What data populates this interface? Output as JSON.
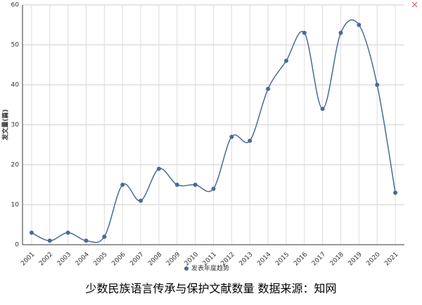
{
  "chart_data": {
    "type": "line",
    "y_label": "发文量(篇)",
    "categories": [
      "2001",
      "2002",
      "2003",
      "2004",
      "2005",
      "2006",
      "2007",
      "2008",
      "2009",
      "2010",
      "2011",
      "2012",
      "2013",
      "2014",
      "2015",
      "2016",
      "2017",
      "2018",
      "2019",
      "2020",
      "2021"
    ],
    "series": [
      {
        "name": "发表年度趋势",
        "color": "#4a6a96",
        "values": [
          3,
          1,
          3,
          1,
          2,
          15,
          11,
          19,
          15,
          15,
          14,
          27,
          26,
          39,
          46,
          53,
          34,
          53,
          55,
          40,
          13
        ]
      }
    ],
    "ylim": [
      0,
      60
    ],
    "yticks": [
      0,
      10,
      20,
      30,
      40,
      50,
      60
    ],
    "grid": true,
    "legend": "bottom",
    "caption": "少数民族语言传承与保护文献数量  数据来源：知网"
  }
}
